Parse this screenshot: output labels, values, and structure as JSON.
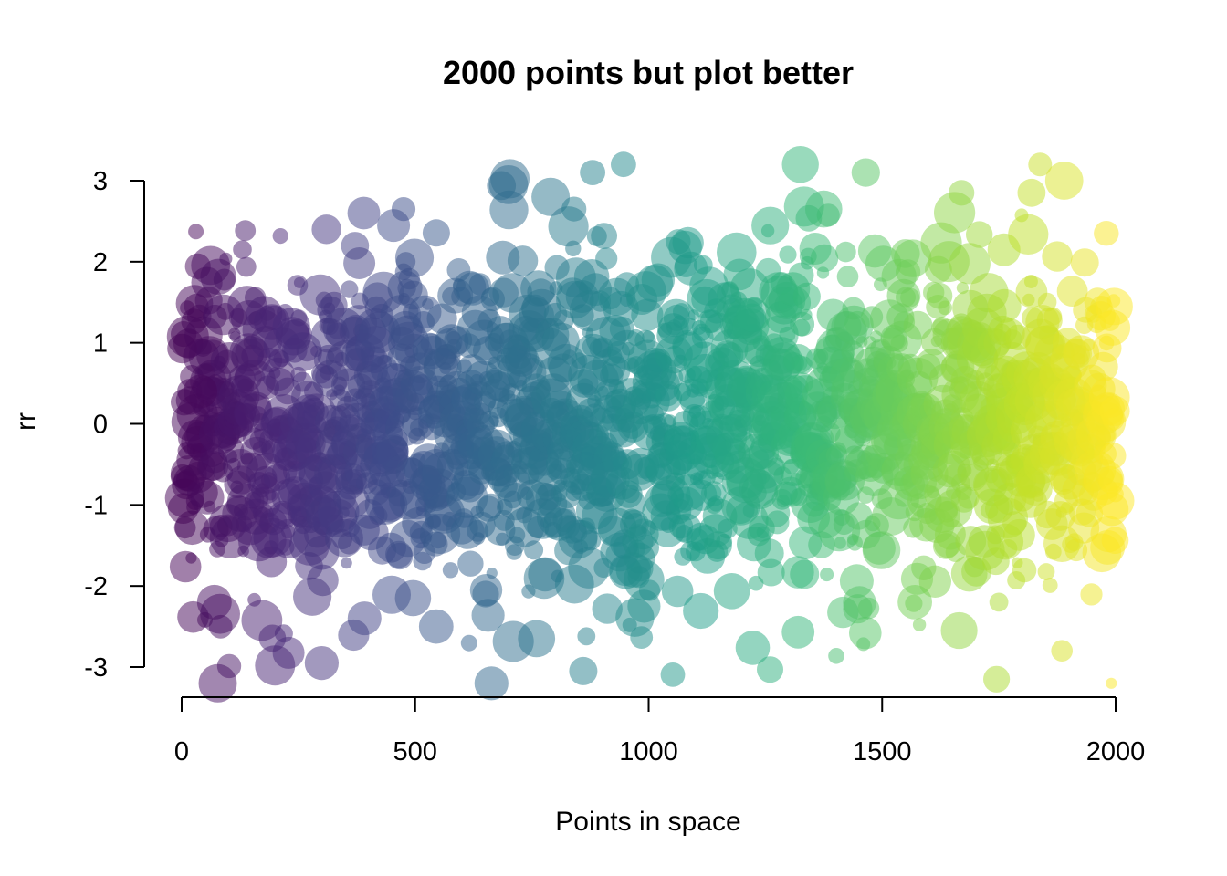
{
  "chart_data": {
    "type": "scatter",
    "title": "2000 points but plot better",
    "xlabel": "Points in space",
    "ylabel": "rr",
    "xlim": [
      0,
      2000
    ],
    "ylim": [
      -3,
      3
    ],
    "x_ticks": [
      0,
      500,
      1000,
      1500,
      2000
    ],
    "y_ticks": [
      -3,
      -2,
      -1,
      0,
      1,
      2,
      3
    ],
    "grid": false,
    "legend": "none",
    "n_points": 2000,
    "point_alpha": 0.5,
    "color_scale": "viridis",
    "color_by": "x",
    "palette": [
      "#440154",
      "#482878",
      "#3e4a89",
      "#31688e",
      "#26828e",
      "#1f9e89",
      "#35b779",
      "#6ece58",
      "#b5de2b",
      "#fde725"
    ],
    "notable_points": [
      {
        "x": 40,
        "y": 0.4
      },
      {
        "x": 70,
        "y": -2.2
      },
      {
        "x": 130,
        "y": 2.15
      },
      {
        "x": 200,
        "y": -2.98
      },
      {
        "x": 300,
        "y": -2.95
      },
      {
        "x": 310,
        "y": 2.4
      },
      {
        "x": 390,
        "y": 2.6
      },
      {
        "x": 475,
        "y": 2.65
      },
      {
        "x": 480,
        "y": 2.0
      },
      {
        "x": 545,
        "y": -2.5
      },
      {
        "x": 700,
        "y": 2.95
      },
      {
        "x": 760,
        "y": -2.65
      },
      {
        "x": 790,
        "y": 2.8
      },
      {
        "x": 840,
        "y": 2.65
      },
      {
        "x": 860,
        "y": -3.05
      },
      {
        "x": 880,
        "y": 3.1
      },
      {
        "x": 990,
        "y": -2.25
      },
      {
        "x": 1080,
        "y": 1.95
      },
      {
        "x": 1260,
        "y": -3.03
      },
      {
        "x": 1320,
        "y": -2.57
      },
      {
        "x": 1325,
        "y": 3.2
      },
      {
        "x": 1375,
        "y": 2.65
      },
      {
        "x": 1465,
        "y": 3.1
      },
      {
        "x": 1550,
        "y": 2.1
      },
      {
        "x": 1570,
        "y": -2.2
      },
      {
        "x": 1665,
        "y": -2.55
      },
      {
        "x": 1670,
        "y": 2.85
      },
      {
        "x": 1745,
        "y": -3.15
      },
      {
        "x": 1750,
        "y": -2.2
      },
      {
        "x": 1820,
        "y": 2.85
      },
      {
        "x": 1890,
        "y": 3.0
      },
      {
        "x": 1885,
        "y": -2.8
      },
      {
        "x": 1980,
        "y": 2.35
      },
      {
        "x": 2000,
        "y": -0.95
      }
    ]
  }
}
